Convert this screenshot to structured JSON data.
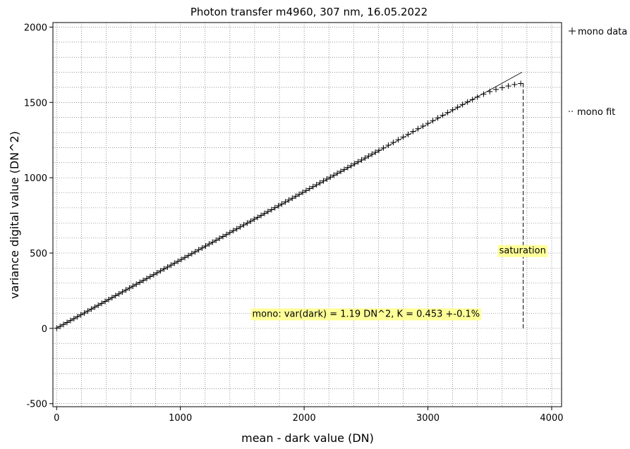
{
  "chart_data": {
    "type": "scatter",
    "title": "Photon transfer m4960,  307 nm, 16.05.2022",
    "xlabel": "mean - dark value (DN)",
    "ylabel": "variance digital value (DN^2)",
    "xlim": [
      -30,
      4080
    ],
    "ylim": [
      -520,
      2030
    ],
    "xticks": [
      0,
      1000,
      2000,
      3000,
      4000
    ],
    "yticks": [
      -500,
      0,
      500,
      1000,
      1500,
      2000
    ],
    "x_minor_step": 200,
    "y_minor_step": 100,
    "grid": true,
    "legend_position": "right",
    "series": [
      {
        "name": "mono data",
        "marker": "+",
        "x": [
          0,
          28,
          56,
          84,
          112,
          140,
          168,
          196,
          224,
          252,
          280,
          308,
          336,
          364,
          392,
          420,
          448,
          476,
          504,
          532,
          560,
          588,
          616,
          644,
          672,
          700,
          728,
          756,
          784,
          812,
          840,
          868,
          896,
          924,
          952,
          980,
          1008,
          1036,
          1064,
          1092,
          1120,
          1148,
          1176,
          1204,
          1232,
          1260,
          1288,
          1316,
          1344,
          1372,
          1400,
          1428,
          1456,
          1484,
          1512,
          1540,
          1568,
          1596,
          1624,
          1652,
          1680,
          1708,
          1736,
          1764,
          1792,
          1820,
          1848,
          1876,
          1904,
          1932,
          1960,
          1988,
          2016,
          2044,
          2072,
          2100,
          2128,
          2156,
          2184,
          2212,
          2240,
          2268,
          2296,
          2324,
          2352,
          2380,
          2408,
          2436,
          2464,
          2492,
          2520,
          2548,
          2576,
          2604,
          2640,
          2680,
          2720,
          2760,
          2800,
          2840,
          2880,
          2920,
          2960,
          3000,
          3040,
          3080,
          3120,
          3160,
          3200,
          3240,
          3280,
          3320,
          3360,
          3400,
          3450,
          3500,
          3550,
          3600,
          3650,
          3700,
          3750
        ],
        "y": [
          1,
          13,
          26,
          39,
          52,
          64,
          77,
          90,
          102,
          115,
          128,
          141,
          153,
          166,
          179,
          191,
          204,
          217,
          229,
          242,
          255,
          268,
          280,
          293,
          306,
          318,
          331,
          344,
          356,
          369,
          382,
          395,
          407,
          420,
          433,
          445,
          458,
          471,
          483,
          496,
          509,
          522,
          534,
          547,
          560,
          572,
          585,
          598,
          610,
          623,
          636,
          649,
          661,
          674,
          687,
          699,
          712,
          725,
          737,
          750,
          763,
          776,
          788,
          801,
          814,
          826,
          839,
          852,
          864,
          877,
          890,
          903,
          915,
          928,
          941,
          953,
          966,
          979,
          991,
          1004,
          1017,
          1030,
          1042,
          1055,
          1068,
          1080,
          1093,
          1106,
          1118,
          1131,
          1144,
          1157,
          1169,
          1182,
          1198,
          1216,
          1234,
          1252,
          1270,
          1288,
          1307,
          1325,
          1343,
          1361,
          1379,
          1397,
          1415,
          1433,
          1451,
          1468,
          1486,
          1503,
          1519,
          1535,
          1555,
          1572,
          1586,
          1598,
          1609,
          1619,
          1625
        ]
      },
      {
        "name": "mono fit",
        "style": "line",
        "x": [
          0,
          3760
        ],
        "y": [
          1.19,
          1700
        ]
      }
    ],
    "annotations": [
      {
        "text": "mono: var(dark) = 1.19 DN^2, K = 0.453 +-0.1%",
        "x": 2500,
        "y": 100,
        "highlight": "#ffff99"
      },
      {
        "text": "saturation",
        "x": 3765,
        "y": 520,
        "highlight": "#ffff99"
      }
    ],
    "saturation_x": 3770,
    "saturation_y_range": [
      0,
      1625
    ]
  }
}
